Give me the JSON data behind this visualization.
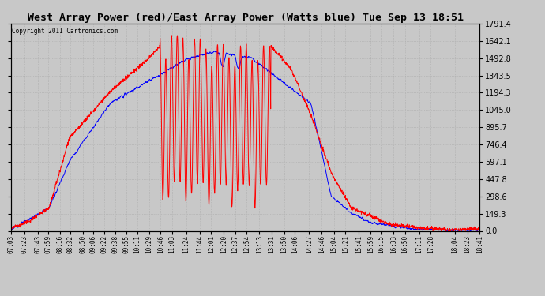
{
  "title": "West Array Power (red)/East Array Power (Watts blue) Tue Sep 13 18:51",
  "copyright": "Copyright 2011 Cartronics.com",
  "background_color": "#c8c8c8",
  "plot_bg_color": "#c8c8c8",
  "grid_color": "#aaaaaa",
  "title_fontsize": 9.5,
  "yticks": [
    0.0,
    149.3,
    298.6,
    447.8,
    597.1,
    746.4,
    895.7,
    1045.0,
    1194.3,
    1343.5,
    1492.8,
    1642.1,
    1791.4
  ],
  "ylim": [
    0.0,
    1791.4
  ],
  "x_labels": [
    "07:03",
    "07:23",
    "07:43",
    "07:59",
    "08:16",
    "08:32",
    "08:50",
    "09:06",
    "09:22",
    "09:38",
    "09:55",
    "10:11",
    "10:29",
    "10:46",
    "11:03",
    "11:24",
    "11:44",
    "12:01",
    "12:20",
    "12:37",
    "12:54",
    "13:13",
    "13:31",
    "13:50",
    "14:06",
    "14:27",
    "14:46",
    "15:04",
    "15:21",
    "15:41",
    "15:59",
    "16:15",
    "16:33",
    "16:50",
    "17:11",
    "17:28",
    "18:04",
    "18:23",
    "18:41"
  ],
  "line_color_west": "#ff0000",
  "line_color_east": "#0000ff",
  "line_width": 0.7
}
